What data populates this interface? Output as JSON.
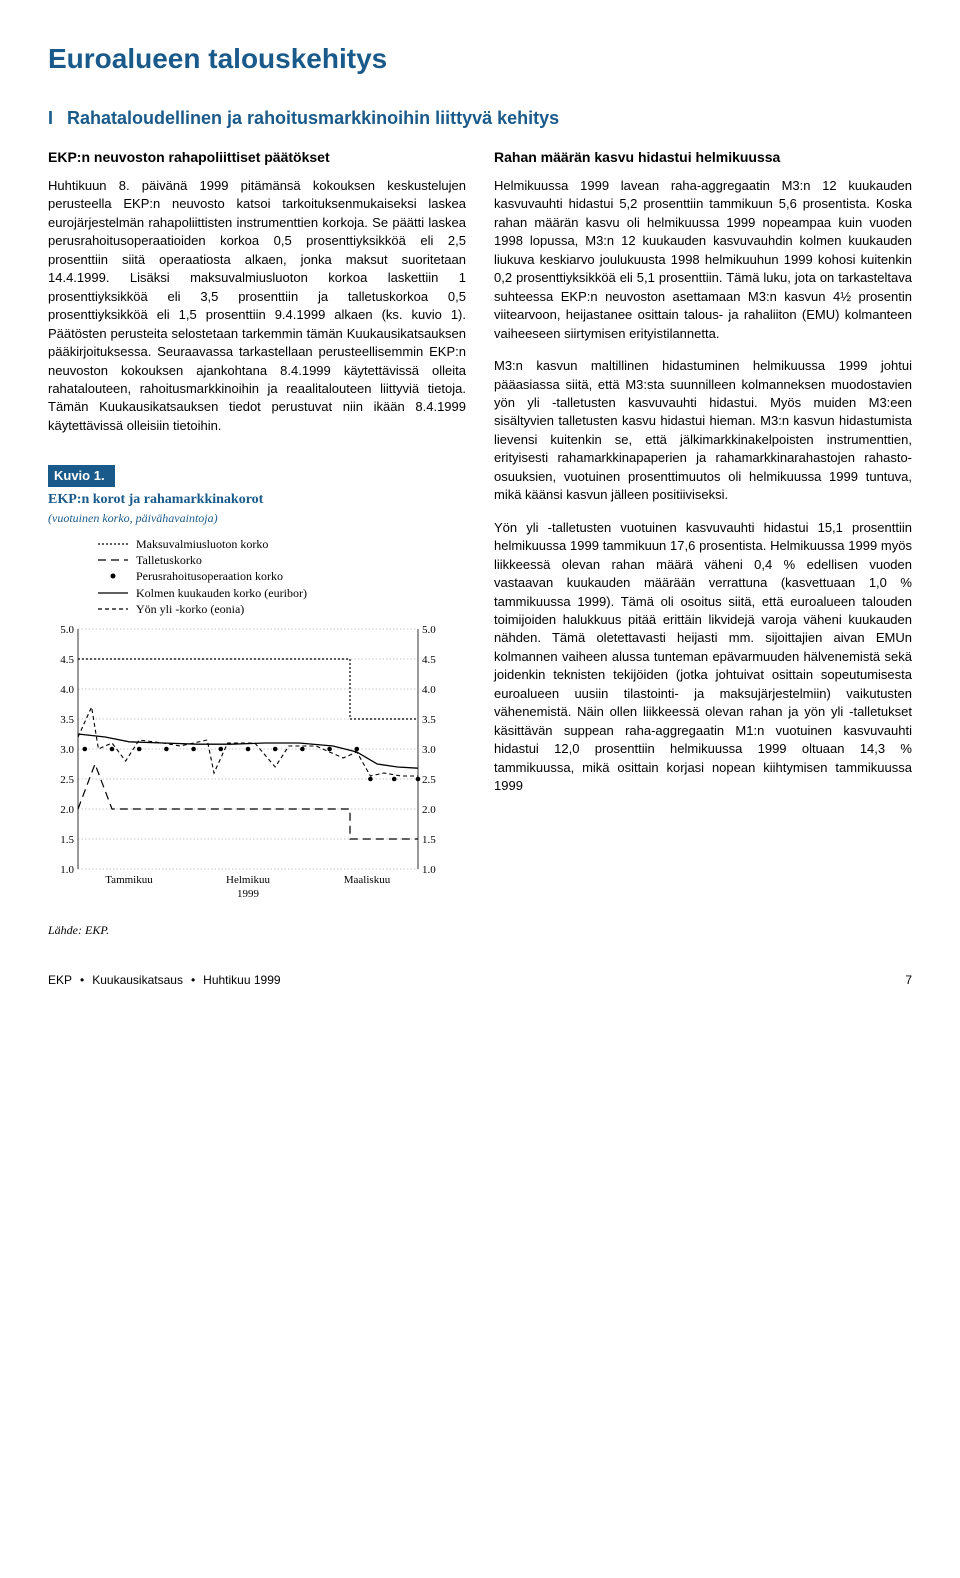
{
  "page_title": "Euroalueen talouskehitys",
  "section": {
    "number": "I",
    "title": "Rahataloudellinen ja rahoitusmarkkinoihin liittyvä kehitys"
  },
  "left": {
    "subhead": "EKP:n neuvoston rahapoliittiset päätökset",
    "para1": "Huhtikuun 8. päivänä 1999 pitämänsä kokouksen keskustelujen perusteella EKP:n neuvosto katsoi tarkoituksenmukaiseksi laskea eurojärjestelmän rahapoliittisten instrumenttien korkoja. Se päätti laskea perusrahoitusoperaatioiden korkoa 0,5 prosenttiyksikköä eli 2,5 prosenttiin siitä operaatiosta alkaen, jonka maksut suoritetaan 14.4.1999. Lisäksi maksuvalmiusluoton korkoa laskettiin 1 prosenttiyksikköä eli 3,5 prosenttiin ja talletuskorkoa 0,5 prosenttiyksikköä eli 1,5 prosenttiin 9.4.1999 alkaen (ks. kuvio 1). Päätösten perusteita selostetaan tarkemmin tämän Kuukausikatsauksen pääkirjoituksessa. Seuraavassa tarkastellaan perusteellisemmin EKP:n neuvoston kokouksen ajankohtana 8.4.1999 käytettävissä olleita rahatalouteen, rahoitusmarkkinoihin ja reaalitalouteen liittyviä tietoja. Tämän Kuukausikatsauksen tiedot perustuvat niin ikään 8.4.1999 käytettävissä olleisiin tietoihin."
  },
  "right": {
    "subhead": "Rahan määrän kasvu hidastui helmikuussa",
    "para1": "Helmikuussa 1999 lavean raha-aggregaatin M3:n 12 kuukauden kasvuvauhti hidastui 5,2 prosenttiin tammikuun 5,6 prosentista. Koska rahan määrän kasvu oli helmikuussa 1999 nopeampaa kuin vuoden 1998 lopussa, M3:n 12 kuukauden kasvuvauhdin kolmen kuukauden liukuva keskiarvo joulukuusta 1998 helmikuuhun 1999 kohosi kuitenkin 0,2 prosenttiyksikköä eli 5,1 prosenttiin. Tämä luku, jota on tarkasteltava suhteessa EKP:n neuvoston asettamaan M3:n kasvun 4½ prosentin viitearvoon, heijastanee osittain talous- ja rahaliiton (EMU) kolmanteen vaiheeseen siirtymisen erityistilannetta.",
    "para2": "M3:n kasvun maltillinen hidastuminen helmikuussa 1999 johtui pääasiassa siitä, että M3:sta suunnilleen kolmanneksen muodostavien yön yli -talletusten kasvuvauhti hidastui. Myös muiden M3:een sisältyvien talletusten kasvu hidastui hieman. M3:n kasvun hidastumista lievensi kuitenkin se, että jälkimarkkinakelpoisten instrumenttien, erityisesti rahamarkkinapaperien ja rahamarkkinarahastojen rahasto-osuuksien, vuotuinen prosenttimuutos oli helmikuussa 1999 tuntuva, mikä käänsi kasvun jälleen positiiviseksi.",
    "para3": "Yön yli -talletusten vuotuinen kasvuvauhti hidastui 15,1 prosenttiin helmikuussa 1999 tammikuun 17,6 prosentista. Helmikuussa 1999 myös liikkeessä olevan rahan määrä väheni 0,4 % edellisen vuoden vastaavan kuukauden määrään verrattuna (kasvettuaan 1,0 % tammikuussa 1999). Tämä oli osoitus siitä, että euroalueen talouden toimijoiden halukkuus pitää erittäin likvidejä varoja väheni kuukauden nähden. Tämä oletettavasti heijasti mm. sijoittajien aivan EMUn kolmannen vaiheen alussa tunteman epävarmuuden hälvenemistä sekä joidenkin teknisten tekijöiden (jotka johtuivat osittain sopeutumisesta euroalueen uusiin tilastointi- ja maksujärjestelmiin) vaikutusten vähenemistä. Näin ollen liikkeessä olevan rahan ja yön yli -talletukset käsittävän suppean raha-aggregaatin M1:n vuotuinen kasvuvauhti hidastui 12,0 prosenttiin helmikuussa 1999 oltuaan 14,3 % tammikuussa, mikä osittain korjasi nopean kiihtymisen tammikuussa 1999"
  },
  "kuvio": {
    "label": "Kuvio 1.",
    "title": "EKP:n korot ja rahamarkkinakorot",
    "subtitle": "(vuotuinen korko, päivähavaintoja)",
    "legend": [
      "Maksuvalmiusluoton korko",
      "Talletuskorko",
      "Perusrahoitusoperaation korko",
      "Kolmen kuukauden korko (euribor)",
      "Yön yli -korko (eonia)"
    ],
    "source": "Lähde: EKP.",
    "chart": {
      "type": "line",
      "ylim": [
        1.0,
        5.0
      ],
      "ytick_step": 0.5,
      "yticks": [
        "1.0",
        "1.5",
        "2.0",
        "2.5",
        "3.0",
        "3.5",
        "4.0",
        "4.5",
        "5.0"
      ],
      "x_labels": [
        "Tammikuu",
        "Helmikuu",
        "Maaliskuu"
      ],
      "x_year": "1999",
      "background_color": "#ffffff",
      "grid_color": "#b8b8b8",
      "line_color": "#000000",
      "series": {
        "maksuvalmiusluoton": {
          "style": "dotted",
          "points": [
            [
              0,
              4.5
            ],
            [
              80,
              4.5
            ],
            [
              80,
              3.5
            ],
            [
              100,
              3.5
            ]
          ]
        },
        "talletuskorko": {
          "style": "long-dash",
          "points": [
            [
              0,
              2.0
            ],
            [
              5,
              2.75
            ],
            [
              10,
              2.0
            ],
            [
              80,
              2.0
            ],
            [
              80,
              1.5
            ],
            [
              100,
              1.5
            ]
          ]
        },
        "perusrahoitus": {
          "style": "markers",
          "marker": "circle",
          "points": [
            [
              2,
              3.0
            ],
            [
              10,
              3.0
            ],
            [
              18,
              3.0
            ],
            [
              26,
              3.0
            ],
            [
              34,
              3.0
            ],
            [
              42,
              3.0
            ],
            [
              50,
              3.0
            ],
            [
              58,
              3.0
            ],
            [
              66,
              3.0
            ],
            [
              74,
              3.0
            ],
            [
              82,
              3.0
            ],
            [
              86,
              2.5
            ],
            [
              93,
              2.5
            ],
            [
              100,
              2.5
            ]
          ]
        },
        "euribor_3m": {
          "style": "solid",
          "points": [
            [
              0,
              3.25
            ],
            [
              8,
              3.2
            ],
            [
              15,
              3.12
            ],
            [
              25,
              3.1
            ],
            [
              35,
              3.08
            ],
            [
              45,
              3.08
            ],
            [
              55,
              3.1
            ],
            [
              65,
              3.1
            ],
            [
              75,
              3.05
            ],
            [
              82,
              2.95
            ],
            [
              88,
              2.75
            ],
            [
              94,
              2.7
            ],
            [
              100,
              2.68
            ]
          ]
        },
        "eonia": {
          "style": "short-dash",
          "points": [
            [
              0,
              3.2
            ],
            [
              4,
              3.7
            ],
            [
              6,
              3.0
            ],
            [
              10,
              3.1
            ],
            [
              14,
              2.8
            ],
            [
              18,
              3.15
            ],
            [
              25,
              3.1
            ],
            [
              30,
              3.05
            ],
            [
              38,
              3.15
            ],
            [
              40,
              2.6
            ],
            [
              44,
              3.1
            ],
            [
              52,
              3.1
            ],
            [
              58,
              2.7
            ],
            [
              62,
              3.05
            ],
            [
              70,
              3.05
            ],
            [
              78,
              2.85
            ],
            [
              82,
              2.95
            ],
            [
              86,
              2.55
            ],
            [
              90,
              2.6
            ],
            [
              95,
              2.55
            ],
            [
              100,
              2.55
            ]
          ]
        }
      }
    }
  },
  "footer": {
    "left_parts": [
      "EKP",
      "Kuukausikatsaus",
      "Huhtikuu 1999"
    ],
    "page": "7"
  }
}
